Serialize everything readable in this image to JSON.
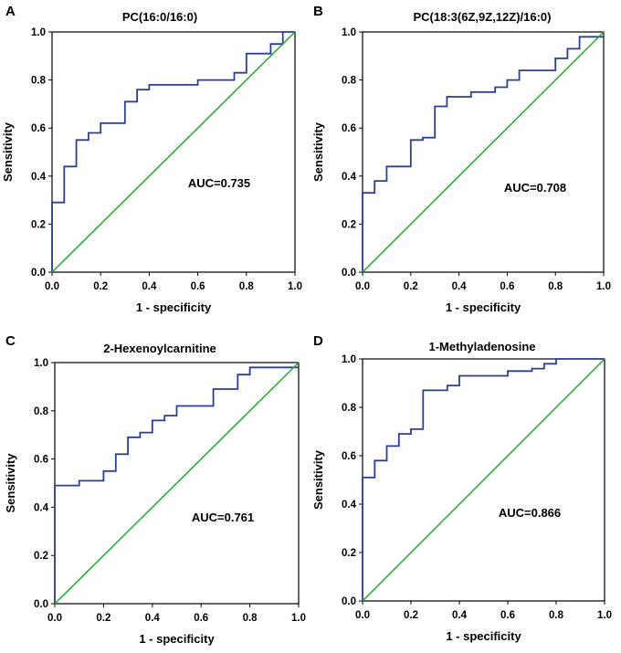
{
  "colors": {
    "roc": "#2b3f99",
    "reference": "#1faa28",
    "axis": "#000000"
  },
  "chart_data": [
    {
      "type": "line",
      "panel": "A",
      "title": "PC(16:0/16:0)",
      "xlabel": "1 - specificity",
      "ylabel": "Sensitivity",
      "xlim": [
        0,
        1
      ],
      "ylim": [
        0,
        1
      ],
      "xticks": [
        "0.0",
        "0.2",
        "0.4",
        "0.6",
        "0.8",
        "1.0"
      ],
      "yticks": [
        "0.0",
        "0.2",
        "0.4",
        "0.6",
        "0.8",
        "1.0"
      ],
      "auc_label": "AUC=0.735",
      "series": [
        {
          "name": "ROC",
          "x": [
            0,
            0,
            0.05,
            0.05,
            0.1,
            0.1,
            0.15,
            0.15,
            0.2,
            0.2,
            0.3,
            0.3,
            0.35,
            0.35,
            0.4,
            0.4,
            0.6,
            0.6,
            0.75,
            0.75,
            0.8,
            0.8,
            0.9,
            0.9,
            0.95,
            0.95,
            1
          ],
          "y": [
            0,
            0.29,
            0.29,
            0.44,
            0.44,
            0.55,
            0.55,
            0.58,
            0.58,
            0.62,
            0.62,
            0.71,
            0.71,
            0.76,
            0.76,
            0.78,
            0.78,
            0.8,
            0.8,
            0.83,
            0.83,
            0.91,
            0.91,
            0.95,
            0.95,
            1,
            1
          ]
        },
        {
          "name": "Reference",
          "x": [
            0,
            1
          ],
          "y": [
            0,
            1
          ]
        }
      ]
    },
    {
      "type": "line",
      "panel": "B",
      "title": "PC(18:3(6Z,9Z,12Z)/16:0)",
      "xlabel": "1 - specificity",
      "ylabel": "Sensitivity",
      "xlim": [
        0,
        1
      ],
      "ylim": [
        0,
        1
      ],
      "xticks": [
        "0.0",
        "0.2",
        "0.4",
        "0.6",
        "0.8",
        "1.0"
      ],
      "yticks": [
        "0.0",
        "0.2",
        "0.4",
        "0.6",
        "0.8",
        "1.0"
      ],
      "auc_label": "AUC=0.708",
      "series": [
        {
          "name": "ROC",
          "x": [
            0,
            0,
            0.05,
            0.05,
            0.1,
            0.1,
            0.2,
            0.2,
            0.25,
            0.25,
            0.3,
            0.3,
            0.35,
            0.35,
            0.45,
            0.45,
            0.55,
            0.55,
            0.6,
            0.6,
            0.65,
            0.65,
            0.8,
            0.8,
            0.85,
            0.85,
            0.9,
            0.9,
            1
          ],
          "y": [
            0,
            0.33,
            0.33,
            0.38,
            0.38,
            0.44,
            0.44,
            0.55,
            0.55,
            0.56,
            0.56,
            0.69,
            0.69,
            0.73,
            0.73,
            0.75,
            0.75,
            0.77,
            0.77,
            0.8,
            0.8,
            0.84,
            0.84,
            0.89,
            0.89,
            0.93,
            0.93,
            0.98,
            0.98
          ]
        },
        {
          "name": "Reference",
          "x": [
            0,
            1
          ],
          "y": [
            0,
            1
          ]
        }
      ]
    },
    {
      "type": "line",
      "panel": "C",
      "title": "2-Hexenoylcarnitine",
      "xlabel": "1 - specificity",
      "ylabel": "Sensitivity",
      "xlim": [
        0,
        1
      ],
      "ylim": [
        0,
        1
      ],
      "xticks": [
        "0.0",
        "0.2",
        "0.4",
        "0.6",
        "0.8",
        "1.0"
      ],
      "yticks": [
        "0.0",
        "0.2",
        "0.4",
        "0.6",
        "0.8",
        "1.0"
      ],
      "auc_label": "AUC=0.761",
      "series": [
        {
          "name": "ROC",
          "x": [
            0,
            0,
            0.1,
            0.1,
            0.2,
            0.2,
            0.25,
            0.25,
            0.3,
            0.3,
            0.35,
            0.35,
            0.4,
            0.4,
            0.45,
            0.45,
            0.5,
            0.5,
            0.65,
            0.65,
            0.75,
            0.75,
            0.8,
            0.8,
            1
          ],
          "y": [
            0,
            0.49,
            0.49,
            0.51,
            0.51,
            0.55,
            0.55,
            0.62,
            0.62,
            0.69,
            0.69,
            0.71,
            0.71,
            0.76,
            0.76,
            0.78,
            0.78,
            0.82,
            0.82,
            0.89,
            0.89,
            0.95,
            0.95,
            0.98,
            0.98
          ]
        },
        {
          "name": "Reference",
          "x": [
            0,
            1
          ],
          "y": [
            0,
            1
          ]
        }
      ]
    },
    {
      "type": "line",
      "panel": "D",
      "title": "1-Methyladenosine",
      "xlabel": "1 - specificity",
      "ylabel": "Sensitivity",
      "xlim": [
        0,
        1
      ],
      "ylim": [
        0,
        1
      ],
      "xticks": [
        "0.0",
        "0.2",
        "0.4",
        "0.6",
        "0.8",
        "1.0"
      ],
      "yticks": [
        "0.0",
        "0.2",
        "0.4",
        "0.6",
        "0.8",
        "1.0"
      ],
      "auc_label": "AUC=0.866",
      "series": [
        {
          "name": "ROC",
          "x": [
            0,
            0,
            0.05,
            0.05,
            0.1,
            0.1,
            0.15,
            0.15,
            0.2,
            0.2,
            0.25,
            0.25,
            0.35,
            0.35,
            0.4,
            0.4,
            0.6,
            0.6,
            0.7,
            0.7,
            0.75,
            0.75,
            0.8,
            0.8,
            1
          ],
          "y": [
            0,
            0.51,
            0.51,
            0.58,
            0.58,
            0.64,
            0.64,
            0.69,
            0.69,
            0.71,
            0.71,
            0.87,
            0.87,
            0.89,
            0.89,
            0.93,
            0.93,
            0.95,
            0.95,
            0.96,
            0.96,
            0.98,
            0.98,
            1,
            1
          ]
        },
        {
          "name": "Reference",
          "x": [
            0,
            1
          ],
          "y": [
            0,
            1
          ]
        }
      ]
    }
  ]
}
